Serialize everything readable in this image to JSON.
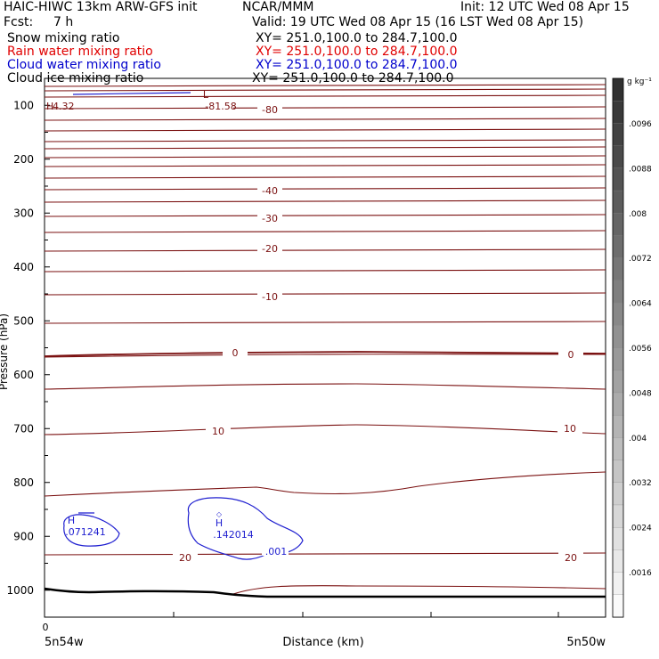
{
  "header": {
    "model": "HAIC-HIWC 13km ARW-GFS init",
    "org": "NCAR/MMM",
    "init": "Init: 12 UTC Wed 08 Apr 15",
    "fcst_label": "Fcst:",
    "fcst_value": "7 h",
    "valid": "Valid: 19 UTC Wed 08 Apr 15 (16 LST Wed 08 Apr 15)"
  },
  "fields": [
    {
      "name": "Snow mixing ratio",
      "xy": "XY= 251.0,100.0 to 284.7,100.0",
      "color": "#000000"
    },
    {
      "name": "Rain water mixing ratio",
      "xy": "XY= 251.0,100.0 to 284.7,100.0",
      "color": "#e00000"
    },
    {
      "name": "Cloud water mixing ratio",
      "xy": "XY= 251.0,100.0 to 284.7,100.0",
      "color": "#0000cc"
    },
    {
      "name": "Cloud ice mixing ratio",
      "xy": "XY= 251.0,100.0 to 284.7,100.0",
      "color": "#000000"
    }
  ],
  "colors": {
    "temperature_contour": "#7a1010",
    "cloud_water_contour": "#1f1fd0",
    "ground": "#000000"
  },
  "chart_data": {
    "type": "cross-section",
    "ylabel": "Pressure (hPa)",
    "xlabel": "Distance (km)",
    "x_start_label": "5n54w",
    "x_end_label": "5n50w",
    "x_tick_label": "0",
    "y_ticks": [
      100,
      200,
      300,
      400,
      500,
      600,
      700,
      800,
      900,
      1000
    ],
    "ylim": [
      1050,
      50
    ],
    "xlim": [
      0,
      1
    ],
    "temperature_contours": [
      {
        "label": "-81.58",
        "type": "L"
      },
      {
        "label": "-80"
      },
      {
        "label": "-40"
      },
      {
        "label": "-30"
      },
      {
        "label": "-20"
      },
      {
        "label": "-10"
      },
      {
        "label": "0"
      },
      {
        "label": "0"
      },
      {
        "label": "10"
      },
      {
        "label": "10"
      },
      {
        "label": "20"
      },
      {
        "label": "20"
      }
    ],
    "extrema": [
      {
        "type": "H",
        "label": "4.32"
      },
      {
        "type": "L",
        "label": "-81.58"
      }
    ],
    "cloud_water": [
      {
        "type": "H",
        "label": ".071241"
      },
      {
        "type": "H",
        "label": ".142014"
      },
      {
        "label": ".001"
      }
    ],
    "colorbar": {
      "unit": "g kg⁻¹",
      "labels": [
        ".0096",
        ".0088",
        ".008",
        ".0072",
        ".0064",
        ".0056",
        ".0048",
        ".004",
        ".0032",
        ".0024",
        ".0016"
      ]
    }
  }
}
